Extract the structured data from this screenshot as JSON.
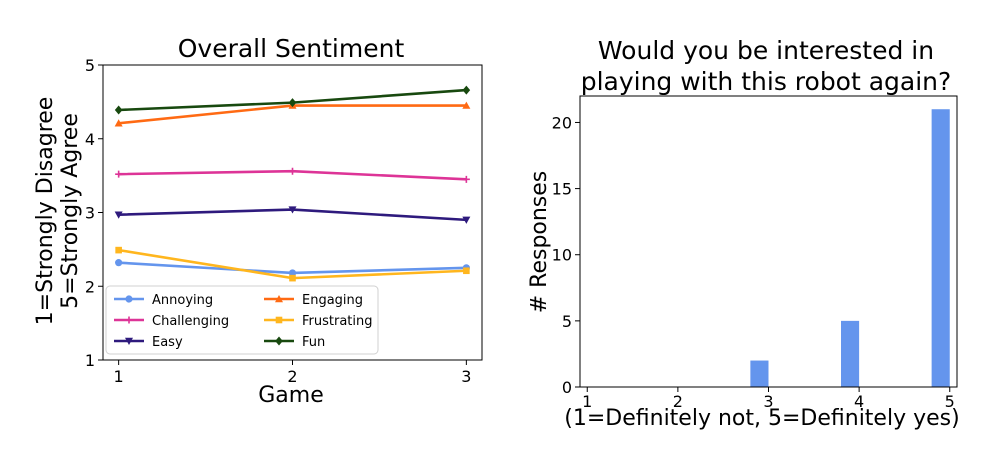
{
  "chart_data": [
    {
      "type": "line",
      "title": "Overall Sentiment",
      "xlabel": "Game",
      "ylabel": [
        "1=Strongly Disagree",
        "5=Strongly Agree"
      ],
      "x": [
        1,
        2,
        3
      ],
      "xticks": [
        "1",
        "2",
        "3"
      ],
      "yticks": [
        "1",
        "2",
        "3",
        "4",
        "5"
      ],
      "ylim": [
        1,
        5
      ],
      "grid": false,
      "legend": "lower-left, 2 columns",
      "series": [
        {
          "name": "Annoying",
          "values": [
            2.32,
            2.18,
            2.25
          ],
          "color": "#6495ed",
          "marker": "circle"
        },
        {
          "name": "Engaging",
          "values": [
            4.21,
            4.45,
            4.45
          ],
          "color": "#ff6a13",
          "marker": "triangle-up"
        },
        {
          "name": "Challenging",
          "values": [
            3.52,
            3.56,
            3.45
          ],
          "color": "#dd3497",
          "marker": "plus"
        },
        {
          "name": "Frustrating",
          "values": [
            2.49,
            2.11,
            2.21
          ],
          "color": "#ffb61e",
          "marker": "square"
        },
        {
          "name": "Easy",
          "values": [
            2.97,
            3.04,
            2.9
          ],
          "color": "#2e1a7d",
          "marker": "triangle-down"
        },
        {
          "name": "Fun",
          "values": [
            4.39,
            4.49,
            4.66
          ],
          "color": "#18490f",
          "marker": "diamond"
        }
      ]
    },
    {
      "type": "bar",
      "title": [
        "Would you be interested in",
        "playing with this robot again?"
      ],
      "xlabel": "(1=Definitely not, 5=Definitely yes)",
      "ylabel": "# Responses",
      "categories": [
        3,
        4,
        5
      ],
      "values": [
        2,
        5,
        21
      ],
      "xticks": [
        "1",
        "2",
        "3",
        "4",
        "5"
      ],
      "yticks": [
        "0",
        "5",
        "10",
        "15",
        "20"
      ],
      "xlim": [
        1,
        5
      ],
      "ylim": [
        0,
        22
      ],
      "grid": false,
      "color": "#6495ed"
    }
  ]
}
